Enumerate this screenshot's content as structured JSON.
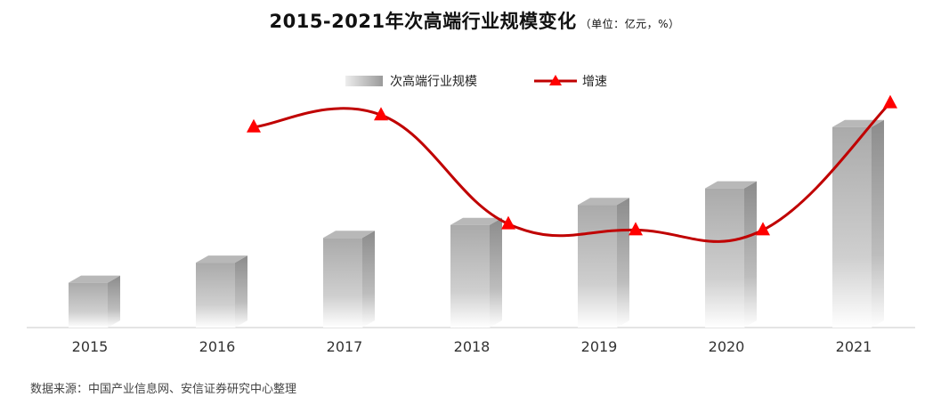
{
  "title": {
    "main": "2015-2021年次高端行业规模变化",
    "unit": "（单位：亿元，%）"
  },
  "legend": {
    "bar_label": "次高端行业规模",
    "line_label": "增速"
  },
  "source": "数据来源：中国产业信息网、安信证券研究中心整理",
  "colors": {
    "line": "#c00000",
    "marker": "#ff0000",
    "bar_top": "#a8a8a8",
    "bar_bottom": "#ffffff",
    "axis": "#c8c8c8"
  },
  "chart_data": {
    "type": "bar",
    "categories": [
      "2015",
      "2016",
      "2017",
      "2018",
      "2019",
      "2020",
      "2021"
    ],
    "series": [
      {
        "name": "次高端行业规模",
        "type": "bar",
        "values": [
          190,
          275,
          380,
          435,
          520,
          590,
          850
        ]
      },
      {
        "name": "增速",
        "type": "line",
        "values": [
          null,
          44,
          46,
          28,
          27,
          27,
          48
        ]
      }
    ],
    "legend_position": "top-center",
    "grid": false
  }
}
